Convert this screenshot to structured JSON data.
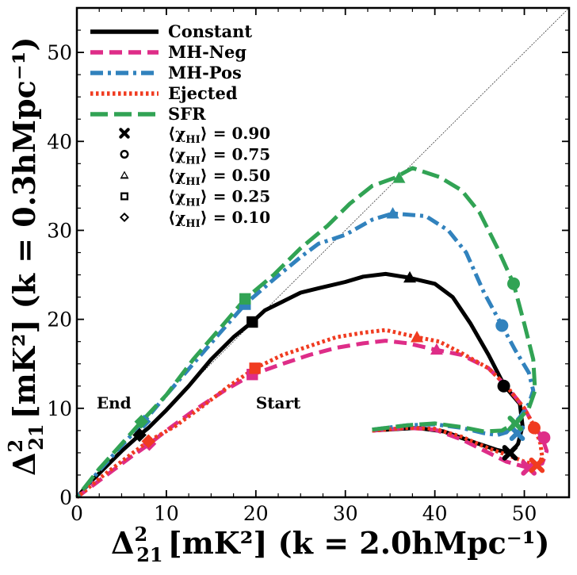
{
  "chart_data": {
    "type": "line",
    "xlabel_main": "Δ",
    "xlabel_sub": "21",
    "xlabel_sup": "2",
    "xlabel_rest": "[mK²] (k = 2.0hMpc⁻¹)",
    "ylabel_main": "Δ",
    "ylabel_sub": "21",
    "ylabel_sup": "2",
    "ylabel_rest": "[mK²] (k = 0.3hMpc⁻¹)",
    "xlim": [
      0,
      55
    ],
    "ylim": [
      0,
      55
    ],
    "xticks": [
      0,
      10,
      20,
      30,
      40,
      50
    ],
    "yticks": [
      0,
      10,
      20,
      30,
      40,
      50
    ],
    "xtick_labels": [
      "0",
      "10",
      "20",
      "30",
      "40",
      "50"
    ],
    "ytick_labels": [
      "0",
      "10",
      "20",
      "30",
      "40",
      "50"
    ],
    "diagonal": true,
    "annotations": [
      {
        "text": "End",
        "x": 2.2,
        "y": 10.5
      },
      {
        "text": "Start",
        "x": 20.0,
        "y": 10.5
      }
    ],
    "series": [
      {
        "name": "Constant",
        "color": "#000000",
        "dash": "solid",
        "points": [
          [
            33,
            7.5
          ],
          [
            38,
            7.8
          ],
          [
            41,
            7.4
          ],
          [
            44,
            6.3
          ],
          [
            47,
            5.3
          ],
          [
            48.5,
            5.0
          ],
          [
            49.3,
            6.0
          ],
          [
            49.8,
            8.0
          ],
          [
            49.5,
            10.5
          ],
          [
            47.8,
            12.5
          ],
          [
            46,
            16
          ],
          [
            44,
            19.5
          ],
          [
            42,
            22.5
          ],
          [
            40,
            24
          ],
          [
            37,
            24.7
          ],
          [
            34.5,
            25.1
          ],
          [
            32,
            24.8
          ],
          [
            30,
            24.2
          ],
          [
            27,
            23.5
          ],
          [
            25,
            23
          ],
          [
            23,
            22
          ],
          [
            21,
            21
          ],
          [
            19.6,
            19.7
          ],
          [
            17.5,
            18
          ],
          [
            15,
            15.5
          ],
          [
            12.5,
            12.5
          ],
          [
            10,
            9.8
          ],
          [
            8,
            7.8
          ],
          [
            7,
            7.0
          ],
          [
            5,
            5.2
          ],
          [
            3,
            3.2
          ],
          [
            1.5,
            1.7
          ],
          [
            0,
            0
          ]
        ],
        "markers": {
          "x90": [
            48.4,
            5.0
          ],
          "c75": [
            47.7,
            12.5
          ],
          "t50": [
            37.2,
            24.7
          ],
          "s25": [
            19.6,
            19.7
          ],
          "d10": [
            7.0,
            7.0
          ]
        }
      },
      {
        "name": "MH-Neg",
        "color": "#de2d88",
        "dash": "dashed",
        "points": [
          [
            33,
            7.5
          ],
          [
            37,
            7.8
          ],
          [
            40,
            7.6
          ],
          [
            43,
            6.5
          ],
          [
            46,
            5.0
          ],
          [
            48,
            4.0
          ],
          [
            50.5,
            3.3
          ],
          [
            52,
            3.8
          ],
          [
            52.5,
            5.2
          ],
          [
            52,
            6.7
          ],
          [
            51,
            8.2
          ],
          [
            50,
            10
          ],
          [
            48,
            12.5
          ],
          [
            46,
            14.5
          ],
          [
            43,
            16
          ],
          [
            40,
            16.6
          ],
          [
            37,
            17.3
          ],
          [
            34.5,
            17.6
          ],
          [
            32,
            17.3
          ],
          [
            29,
            16.8
          ],
          [
            26,
            16
          ],
          [
            23,
            15
          ],
          [
            19.6,
            13.8
          ],
          [
            16.5,
            12
          ],
          [
            13,
            9.7
          ],
          [
            10,
            7.5
          ],
          [
            8.1,
            6.0
          ],
          [
            6,
            4.5
          ],
          [
            4,
            3.0
          ],
          [
            2,
            1.5
          ],
          [
            0,
            0
          ]
        ],
        "markers": {
          "x90": [
            50.5,
            3.3
          ],
          "c75": [
            52.2,
            6.7
          ],
          "t50": [
            40.2,
            16.6
          ],
          "s25": [
            19.6,
            13.8
          ],
          "d10": [
            8.1,
            6.0
          ]
        }
      },
      {
        "name": "MH-Pos",
        "color": "#3182bd",
        "dash": "dashdot",
        "points": [
          [
            33,
            7.6
          ],
          [
            37,
            8.1
          ],
          [
            40,
            8.2
          ],
          [
            43,
            7.8
          ],
          [
            45.5,
            7.2
          ],
          [
            47,
            7.0
          ],
          [
            48,
            7.3
          ],
          [
            49.5,
            9.0
          ],
          [
            50.5,
            10.5
          ],
          [
            51,
            12
          ],
          [
            50.5,
            14
          ],
          [
            49,
            16.5
          ],
          [
            47.5,
            19.3
          ],
          [
            45.5,
            23
          ],
          [
            43.5,
            27.5
          ],
          [
            41.5,
            30
          ],
          [
            39,
            31.6
          ],
          [
            35.3,
            31.9
          ],
          [
            33,
            31.2
          ],
          [
            30,
            29.5
          ],
          [
            27,
            28.5
          ],
          [
            25,
            27
          ],
          [
            22,
            24.5
          ],
          [
            18.8,
            21.7
          ],
          [
            16,
            18.5
          ],
          [
            13,
            15
          ],
          [
            10,
            11.5
          ],
          [
            7.5,
            8.5
          ],
          [
            5,
            5.8
          ],
          [
            2.5,
            3.0
          ],
          [
            0,
            0
          ]
        ],
        "markers": {
          "x90": [
            49.2,
            7.2
          ],
          "c75": [
            47.5,
            19.3
          ],
          "t50": [
            35.3,
            31.9
          ],
          "s25": [
            18.8,
            21.7
          ],
          "d10": [
            7.5,
            8.5
          ]
        }
      },
      {
        "name": "Ejected",
        "color": "#f03b20",
        "dash": "dotted",
        "points": [
          [
            33,
            7.5
          ],
          [
            37,
            7.8
          ],
          [
            40,
            7.7
          ],
          [
            43,
            6.8
          ],
          [
            46,
            5.5
          ],
          [
            48.5,
            4.6
          ],
          [
            50,
            4.0
          ],
          [
            51.5,
            3.6
          ],
          [
            52,
            4.5
          ],
          [
            51.8,
            6.0
          ],
          [
            51.2,
            7.8
          ],
          [
            50,
            10
          ],
          [
            48,
            12.5
          ],
          [
            46,
            14.5
          ],
          [
            43,
            16.2
          ],
          [
            40.5,
            17.5
          ],
          [
            38,
            18.0
          ],
          [
            34.5,
            18.8
          ],
          [
            32,
            18.5
          ],
          [
            29,
            18
          ],
          [
            26,
            17
          ],
          [
            23,
            16
          ],
          [
            19.9,
            14.5
          ],
          [
            17,
            12.5
          ],
          [
            14,
            10.2
          ],
          [
            11,
            8
          ],
          [
            8.0,
            6.3
          ],
          [
            6,
            4.8
          ],
          [
            3,
            2.5
          ],
          [
            0,
            0
          ]
        ],
        "markers": {
          "x90": [
            51.4,
            3.6
          ],
          "c75": [
            51.1,
            7.8
          ],
          "t50": [
            38.0,
            18.0
          ],
          "s25": [
            19.9,
            14.5
          ],
          "d10": [
            8.0,
            6.3
          ]
        }
      },
      {
        "name": "SFR",
        "color": "#31a354",
        "dash": "longdash",
        "points": [
          [
            33,
            7.6
          ],
          [
            37,
            8.1
          ],
          [
            40,
            8.3
          ],
          [
            43,
            7.9
          ],
          [
            45.5,
            7.4
          ],
          [
            47.5,
            7.5
          ],
          [
            49.2,
            8.5
          ],
          [
            50.5,
            10.0
          ],
          [
            51.2,
            12
          ],
          [
            51,
            15.5
          ],
          [
            50,
            19.5
          ],
          [
            48.8,
            24
          ],
          [
            47,
            28
          ],
          [
            45,
            32
          ],
          [
            43,
            34.5
          ],
          [
            40.5,
            36
          ],
          [
            37.5,
            37
          ],
          [
            35.5,
            35.9
          ],
          [
            33,
            35
          ],
          [
            30.5,
            33
          ],
          [
            28,
            30.5
          ],
          [
            25,
            28
          ],
          [
            22,
            25
          ],
          [
            18.8,
            22.3
          ],
          [
            16,
            19
          ],
          [
            13,
            15.5
          ],
          [
            10,
            11.5
          ],
          [
            7.2,
            8.5
          ],
          [
            5,
            6
          ],
          [
            2.5,
            3.2
          ],
          [
            0,
            0
          ]
        ],
        "markers": {
          "x90": [
            49.0,
            8.3
          ],
          "c75": [
            48.8,
            24.0
          ],
          "t50": [
            36.0,
            35.9
          ],
          "s25": [
            18.8,
            22.3
          ],
          "d10": [
            7.2,
            8.5
          ]
        }
      }
    ],
    "legend_position": "top-left",
    "marker_legend": [
      {
        "symbol": "x",
        "label": "⟨χ_HI⟩ = 0.90",
        "chi": "χ",
        "sub": "HI",
        "value": "0.90"
      },
      {
        "symbol": "circle",
        "label": "⟨χ_HI⟩ = 0.75",
        "chi": "χ",
        "sub": "HI",
        "value": "0.75"
      },
      {
        "symbol": "triangle",
        "label": "⟨χ_HI⟩ = 0.50",
        "chi": "χ",
        "sub": "HI",
        "value": "0.50"
      },
      {
        "symbol": "square",
        "label": "⟨χ_HI⟩ = 0.25",
        "chi": "χ",
        "sub": "HI",
        "value": "0.25"
      },
      {
        "symbol": "diamond",
        "label": "⟨χ_HI⟩ = 0.10",
        "chi": "χ",
        "sub": "HI",
        "value": "0.10"
      }
    ]
  }
}
